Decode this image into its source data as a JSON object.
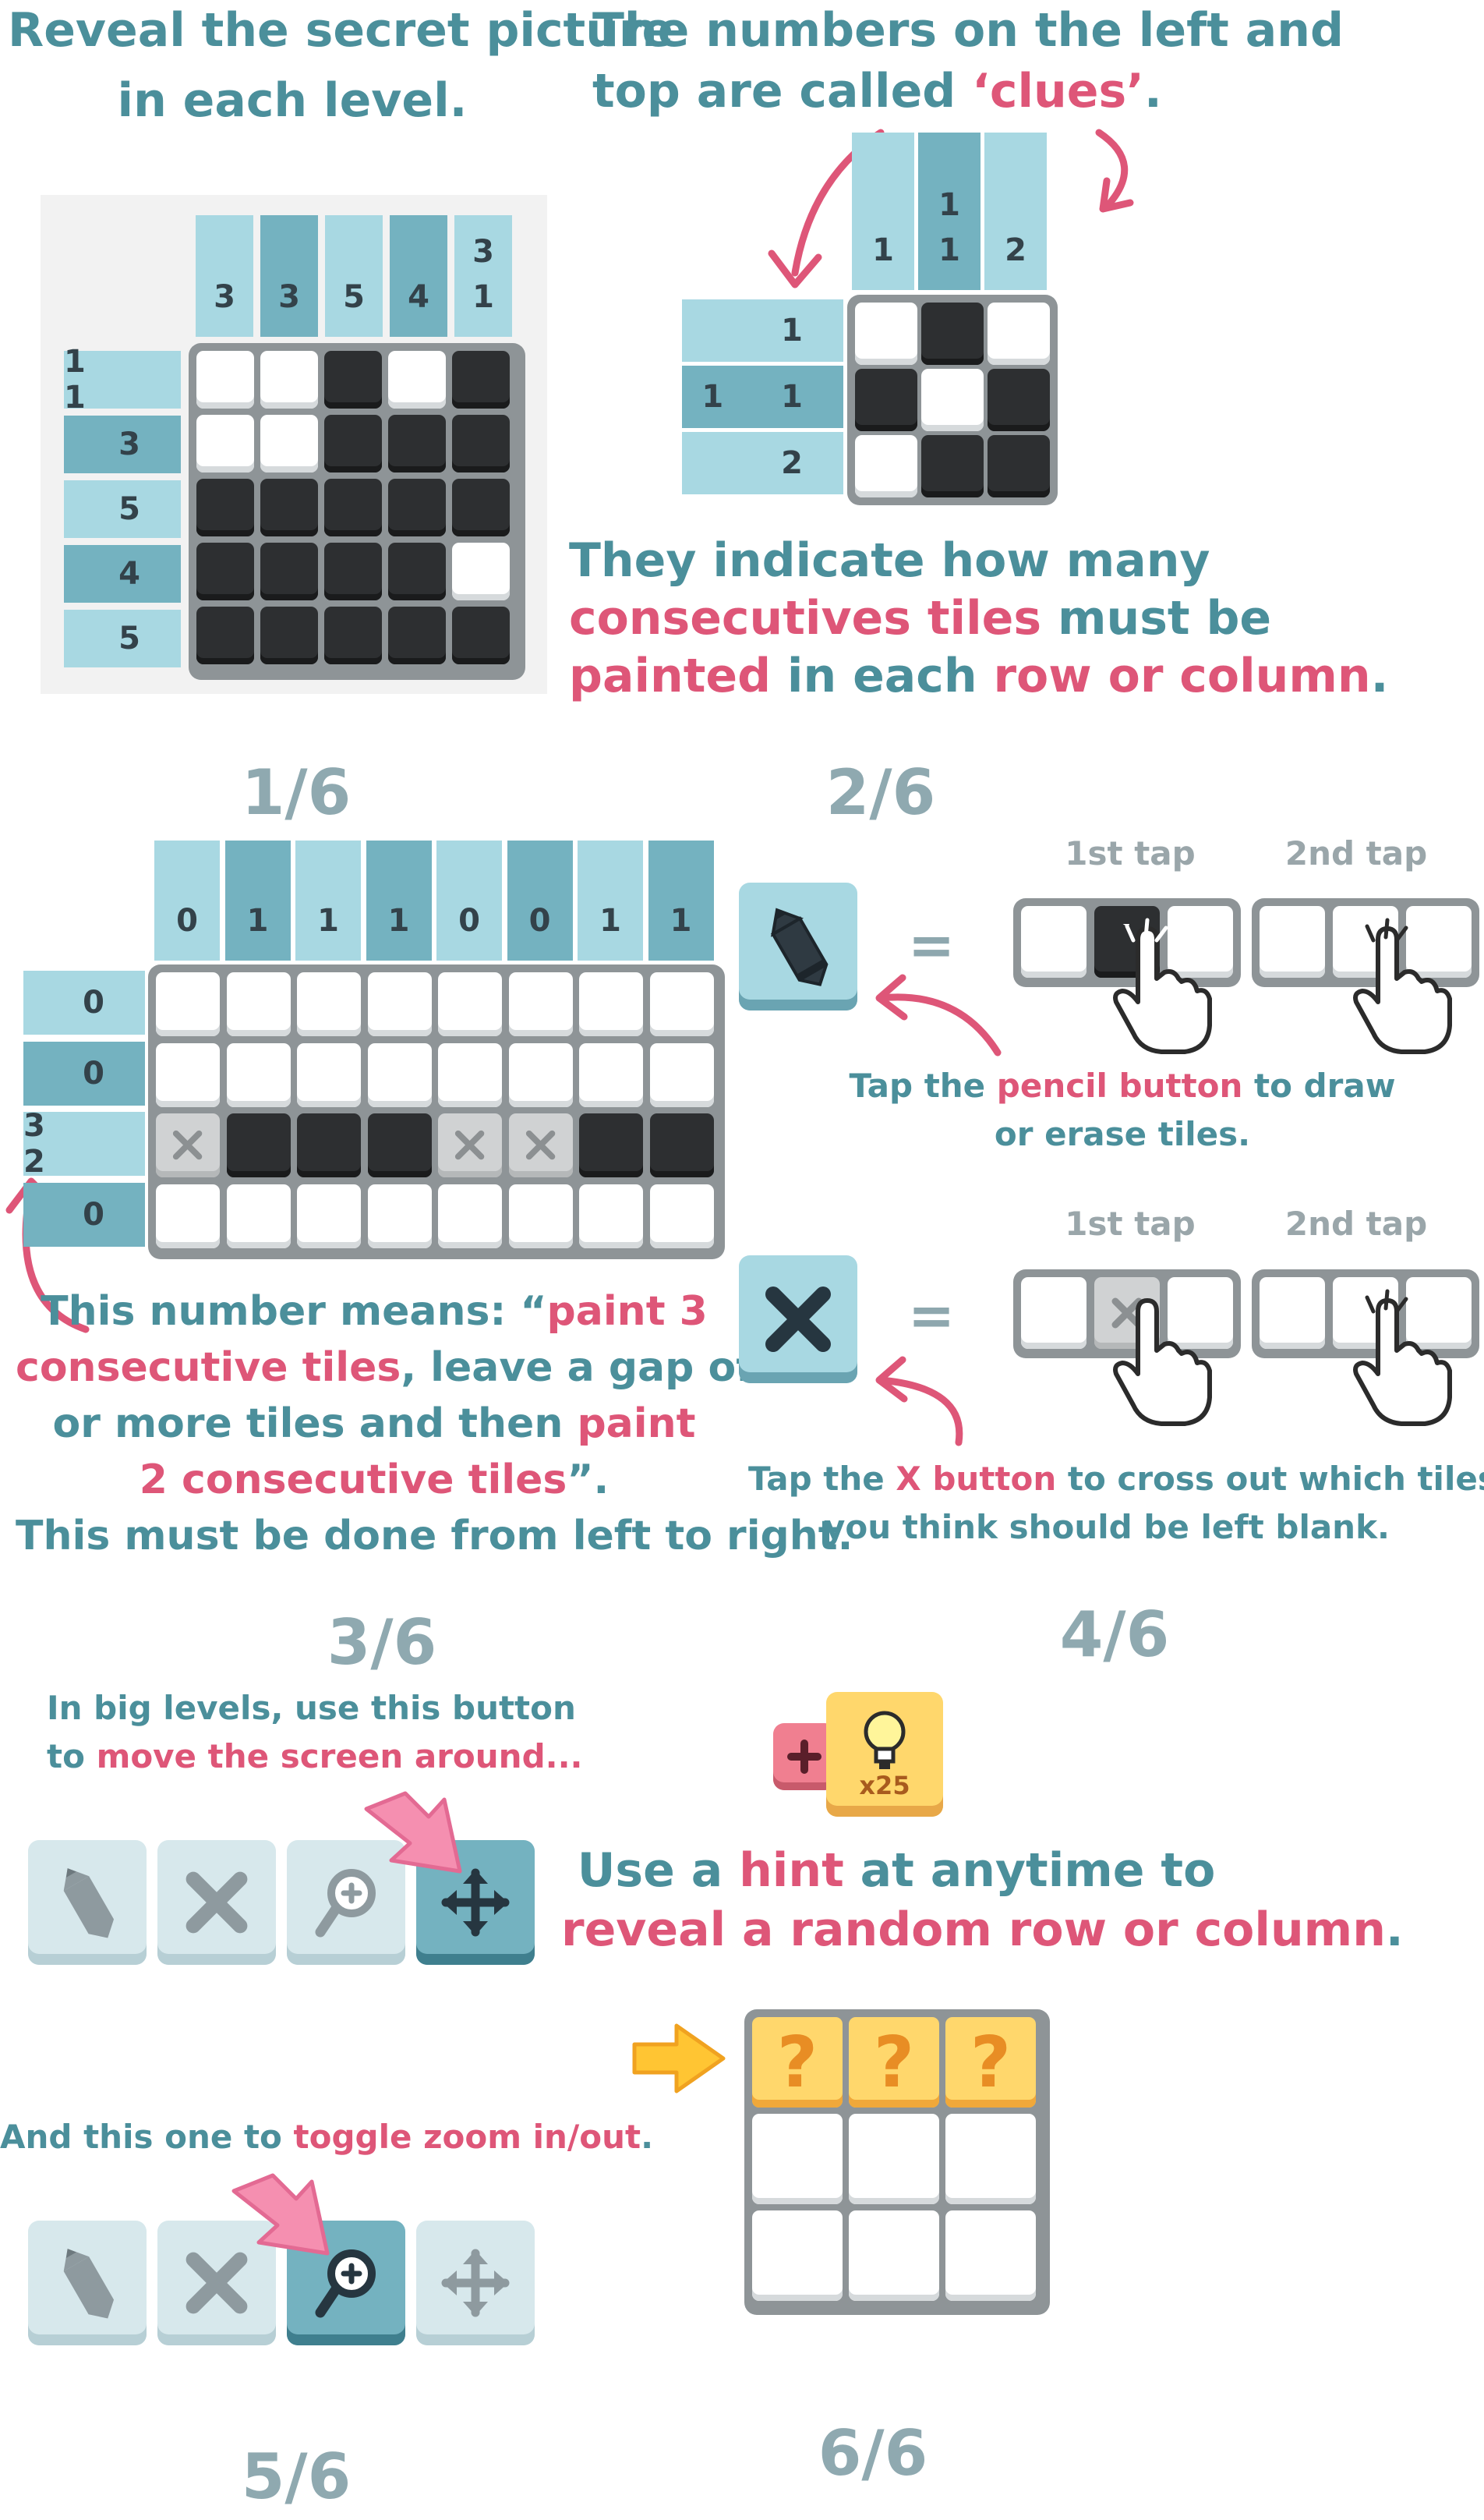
{
  "intro": {
    "line1": "Reveal the secret picture",
    "line2": "in each level.",
    "clues_line1": "The numbers on the left and",
    "clues_line2_a": "top are called ",
    "clues_line2_b": "‘clues’",
    "clues_line2_c": ".",
    "indicate_line1": "They indicate how many",
    "indicate_line2_a": "consecutives tiles",
    "indicate_line2_b": " must be",
    "indicate_line3_a": "painted",
    "indicate_line3_b": " in each ",
    "indicate_line3_c": "row or column",
    "indicate_line3_d": "."
  },
  "example_big": {
    "col_clues": [
      [
        "3"
      ],
      [
        "3"
      ],
      [
        "5"
      ],
      [
        "4"
      ],
      [
        "3",
        "1"
      ]
    ],
    "row_clues": [
      "1 1",
      "3",
      "5",
      "4",
      "5"
    ],
    "grid": [
      [
        "w",
        "w",
        "b",
        "w",
        "b"
      ],
      [
        "w",
        "w",
        "b",
        "b",
        "b"
      ],
      [
        "b",
        "b",
        "b",
        "b",
        "b"
      ],
      [
        "b",
        "b",
        "b",
        "b",
        "w"
      ],
      [
        "b",
        "b",
        "b",
        "b",
        "b"
      ]
    ]
  },
  "example_small": {
    "col_clues": [
      [
        "1"
      ],
      [
        "1",
        "1"
      ],
      [
        "2"
      ]
    ],
    "row_clues": [
      "1",
      "1 1",
      "2"
    ],
    "grid": [
      [
        "w",
        "b",
        "w"
      ],
      [
        "b",
        "w",
        "b"
      ],
      [
        "w",
        "b",
        "b"
      ]
    ]
  },
  "pages": {
    "p1": "1/6",
    "p2": "2/6",
    "p3": "3/6",
    "p4": "4/6",
    "p5": "5/6",
    "p6": "6/6"
  },
  "page1": {
    "col_clues": [
      "0",
      "1",
      "1",
      "1",
      "0",
      "0",
      "1",
      "1"
    ],
    "row_clues": [
      "0",
      "0",
      "3 2",
      "0"
    ],
    "grid": [
      [
        "w",
        "w",
        "w",
        "w",
        "w",
        "w",
        "w",
        "w"
      ],
      [
        "w",
        "w",
        "w",
        "w",
        "w",
        "w",
        "w",
        "w"
      ],
      [
        "x",
        "b",
        "b",
        "b",
        "x",
        "x",
        "b",
        "b"
      ],
      [
        "w",
        "w",
        "w",
        "w",
        "w",
        "w",
        "w",
        "w"
      ]
    ],
    "line1_a": "This number means: “",
    "line1_b": "paint 3",
    "line2_a": "consecutive tiles",
    "line2_b": ", leave a gap of one",
    "line3_a": "or more tiles and then ",
    "line3_b": "paint",
    "line4_a": "2 consecutive tiles",
    "line4_b": "”.",
    "line5": "This must be done from left to right."
  },
  "page2": {
    "tap1": "1st tap",
    "tap2": "2nd tap",
    "pencil_line1_a": "Tap the ",
    "pencil_line1_b": "pencil button",
    "pencil_line1_c": " to draw",
    "pencil_line2": "or erase tiles.",
    "x_line1_a": "Tap the ",
    "x_line1_b": "X button",
    "x_line1_c": " to cross out which tiles",
    "x_line2": "you think should be left blank.",
    "equals": "="
  },
  "page3": {
    "line1": "In big levels, use this button",
    "line2_a": "to ",
    "line2_b": "move the screen around...",
    "zoom_a": "And this one to ",
    "zoom_b": "toggle zoom in/out",
    "zoom_c": "."
  },
  "page4": {
    "hint_count": "x25",
    "line1_a": "Use a ",
    "line1_b": "hint",
    "line1_c": " at anytime to",
    "line2_a": "reveal a random ",
    "line2_b": "row or column",
    "line2_c": ".",
    "question": "?"
  },
  "colors": {
    "teal_text": "#4b8f9b",
    "pink_text": "#de5678",
    "clue_light": "#a8d8e2",
    "clue_dark": "#74b2c0",
    "tile_black": "#2d2f31",
    "hint_yellow": "#ffd76c"
  }
}
